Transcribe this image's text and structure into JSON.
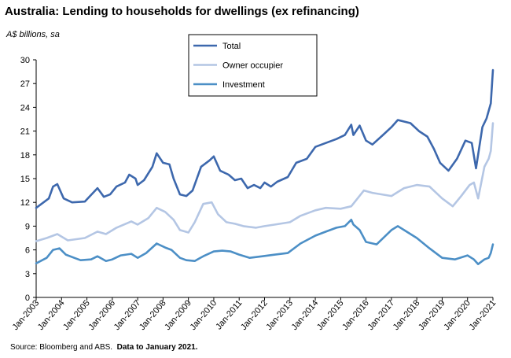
{
  "title": "Australia: Lending to households for dwellings (ex refinancing)",
  "units_label": "A$ billions, sa",
  "source_prefix": "Source: Bloomberg and ABS.",
  "source_bold": "Data to January 2021.",
  "colors": {
    "total": "#3d68ad",
    "owner": "#b4c6e4",
    "investment": "#4c8fc6",
    "axis": "#000000"
  },
  "chart_data": {
    "type": "line",
    "title": "Australia: Lending to households for dwellings (ex refinancing)",
    "ylabel": "A$ billions, sa",
    "xlabel": "",
    "ylim": [
      0,
      30
    ],
    "yticks": [
      0,
      3,
      6,
      9,
      12,
      15,
      18,
      21,
      24,
      27,
      30
    ],
    "xlim": [
      "Jan-2003",
      "Jan-2021"
    ],
    "xticks": [
      "Jan-2003",
      "Jan-2004",
      "Jan-2005",
      "Jan-2006",
      "Jan-2007",
      "Jan-2008",
      "Jan-2009",
      "Jan-2010",
      "Jan-2011",
      "Jan-2012",
      "Jan-2013",
      "Jan-2014",
      "Jan-2015",
      "Jan-2016",
      "Jan-2017",
      "Jan-2018",
      "Jan-2019",
      "Jan-2020",
      "Jan-2021"
    ],
    "grid": false,
    "legend_position": "top-center",
    "series": [
      {
        "name": "Total",
        "color": "#3d68ad",
        "points": [
          [
            "Jan-2003",
            11.3
          ],
          [
            "Jul-2003",
            12.5
          ],
          [
            "Sep-2003",
            14.0
          ],
          [
            "Nov-2003",
            14.3
          ],
          [
            "Feb-2004",
            12.5
          ],
          [
            "Jun-2004",
            12.0
          ],
          [
            "Dec-2004",
            12.1
          ],
          [
            "Jun-2005",
            13.8
          ],
          [
            "Sep-2005",
            12.7
          ],
          [
            "Dec-2005",
            13.0
          ],
          [
            "Mar-2006",
            14.0
          ],
          [
            "Jul-2006",
            14.5
          ],
          [
            "Sep-2006",
            15.5
          ],
          [
            "Dec-2006",
            15.0
          ],
          [
            "Jan-2007",
            14.2
          ],
          [
            "Apr-2007",
            14.8
          ],
          [
            "Aug-2007",
            16.5
          ],
          [
            "Oct-2007",
            18.2
          ],
          [
            "Jan-2008",
            17.0
          ],
          [
            "Apr-2008",
            16.8
          ],
          [
            "Jun-2008",
            15.0
          ],
          [
            "Sep-2008",
            13.0
          ],
          [
            "Dec-2008",
            12.8
          ],
          [
            "Mar-2009",
            13.5
          ],
          [
            "Jul-2009",
            16.5
          ],
          [
            "Nov-2009",
            17.3
          ],
          [
            "Jan-2010",
            17.8
          ],
          [
            "Apr-2010",
            16.0
          ],
          [
            "Aug-2010",
            15.5
          ],
          [
            "Nov-2010",
            14.8
          ],
          [
            "Feb-2011",
            15.0
          ],
          [
            "May-2011",
            13.8
          ],
          [
            "Aug-2011",
            14.2
          ],
          [
            "Nov-2011",
            13.8
          ],
          [
            "Jan-2012",
            14.5
          ],
          [
            "Apr-2012",
            14.0
          ],
          [
            "Jul-2012",
            14.6
          ],
          [
            "Dec-2012",
            15.2
          ],
          [
            "Apr-2013",
            17.0
          ],
          [
            "Sep-2013",
            17.5
          ],
          [
            "Jan-2014",
            19.0
          ],
          [
            "Jun-2014",
            19.5
          ],
          [
            "Nov-2014",
            20.0
          ],
          [
            "Mar-2015",
            20.5
          ],
          [
            "Jun-2015",
            21.8
          ],
          [
            "Jul-2015",
            20.5
          ],
          [
            "Oct-2015",
            21.7
          ],
          [
            "Jan-2016",
            19.8
          ],
          [
            "Apr-2016",
            19.3
          ],
          [
            "Sep-2016",
            20.5
          ],
          [
            "Jan-2017",
            21.5
          ],
          [
            "Apr-2017",
            22.4
          ],
          [
            "Jul-2017",
            22.2
          ],
          [
            "Oct-2017",
            22.0
          ],
          [
            "Feb-2018",
            21.0
          ],
          [
            "Jun-2018",
            20.3
          ],
          [
            "Sep-2018",
            18.8
          ],
          [
            "Dec-2018",
            17.0
          ],
          [
            "Apr-2019",
            16.0
          ],
          [
            "Aug-2019",
            17.5
          ],
          [
            "Dec-2019",
            19.8
          ],
          [
            "Mar-2020",
            19.5
          ],
          [
            "May-2020",
            16.3
          ],
          [
            "Aug-2020",
            21.5
          ],
          [
            "Oct-2020",
            22.6
          ],
          [
            "Dec-2020",
            24.5
          ],
          [
            "Jan-2021",
            28.7
          ]
        ]
      },
      {
        "name": "Owner occupier",
        "color": "#b4c6e4",
        "points": [
          [
            "Jan-2003",
            7.1
          ],
          [
            "Jun-2003",
            7.5
          ],
          [
            "Nov-2003",
            8.0
          ],
          [
            "Apr-2004",
            7.2
          ],
          [
            "Dec-2004",
            7.5
          ],
          [
            "Jun-2005",
            8.3
          ],
          [
            "Oct-2005",
            8.0
          ],
          [
            "Mar-2006",
            8.8
          ],
          [
            "Oct-2006",
            9.6
          ],
          [
            "Jan-2007",
            9.2
          ],
          [
            "Jun-2007",
            10.0
          ],
          [
            "Oct-2007",
            11.3
          ],
          [
            "Feb-2008",
            10.8
          ],
          [
            "Jun-2008",
            9.8
          ],
          [
            "Sep-2008",
            8.5
          ],
          [
            "Jan-2009",
            8.2
          ],
          [
            "Apr-2009",
            9.5
          ],
          [
            "Aug-2009",
            11.8
          ],
          [
            "Dec-2009",
            12.0
          ],
          [
            "Mar-2010",
            10.5
          ],
          [
            "Jul-2010",
            9.5
          ],
          [
            "Nov-2010",
            9.3
          ],
          [
            "Mar-2011",
            9.0
          ],
          [
            "Sep-2011",
            8.8
          ],
          [
            "Jan-2012",
            9.0
          ],
          [
            "Jun-2012",
            9.2
          ],
          [
            "Jan-2013",
            9.5
          ],
          [
            "Jun-2013",
            10.3
          ],
          [
            "Jan-2014",
            11.0
          ],
          [
            "Jun-2014",
            11.3
          ],
          [
            "Jan-2015",
            11.2
          ],
          [
            "Jun-2015",
            11.5
          ],
          [
            "Dec-2015",
            13.5
          ],
          [
            "Apr-2016",
            13.2
          ],
          [
            "Jan-2017",
            12.8
          ],
          [
            "Jul-2017",
            13.8
          ],
          [
            "Jan-2018",
            14.2
          ],
          [
            "Jul-2018",
            14.0
          ],
          [
            "Jan-2019",
            12.5
          ],
          [
            "Jun-2019",
            11.5
          ],
          [
            "Oct-2019",
            12.8
          ],
          [
            "Feb-2020",
            14.2
          ],
          [
            "Apr-2020",
            14.5
          ],
          [
            "Jun-2020",
            12.5
          ],
          [
            "Sep-2020",
            16.5
          ],
          [
            "Nov-2020",
            17.5
          ],
          [
            "Dec-2020",
            18.5
          ],
          [
            "Jan-2021",
            22.0
          ]
        ]
      },
      {
        "name": "Investment",
        "color": "#4c8fc6",
        "points": [
          [
            "Jan-2003",
            4.3
          ],
          [
            "Jun-2003",
            5.0
          ],
          [
            "Sep-2003",
            6.0
          ],
          [
            "Dec-2003",
            6.2
          ],
          [
            "Mar-2004",
            5.4
          ],
          [
            "Jul-2004",
            5.0
          ],
          [
            "Oct-2004",
            4.7
          ],
          [
            "Mar-2005",
            4.8
          ],
          [
            "Jun-2005",
            5.2
          ],
          [
            "Oct-2005",
            4.6
          ],
          [
            "Jan-2006",
            4.8
          ],
          [
            "May-2006",
            5.3
          ],
          [
            "Oct-2006",
            5.5
          ],
          [
            "Jan-2007",
            5.0
          ],
          [
            "May-2007",
            5.6
          ],
          [
            "Oct-2007",
            6.8
          ],
          [
            "Feb-2008",
            6.3
          ],
          [
            "May-2008",
            6.0
          ],
          [
            "Sep-2008",
            5.0
          ],
          [
            "Dec-2008",
            4.7
          ],
          [
            "Apr-2009",
            4.6
          ],
          [
            "Aug-2009",
            5.2
          ],
          [
            "Jan-2010",
            5.8
          ],
          [
            "May-2010",
            5.9
          ],
          [
            "Sep-2010",
            5.8
          ],
          [
            "Jan-2011",
            5.4
          ],
          [
            "Jun-2011",
            5.0
          ],
          [
            "Dec-2011",
            5.2
          ],
          [
            "Jun-2012",
            5.4
          ],
          [
            "Dec-2012",
            5.6
          ],
          [
            "Jun-2013",
            6.8
          ],
          [
            "Jan-2014",
            7.8
          ],
          [
            "Jun-2014",
            8.3
          ],
          [
            "Nov-2014",
            8.8
          ],
          [
            "Mar-2015",
            9.0
          ],
          [
            "Jun-2015",
            9.8
          ],
          [
            "Jul-2015",
            9.2
          ],
          [
            "Oct-2015",
            8.5
          ],
          [
            "Jan-2016",
            7.0
          ],
          [
            "Jun-2016",
            6.7
          ],
          [
            "Jan-2017",
            8.5
          ],
          [
            "Apr-2017",
            9.0
          ],
          [
            "Jul-2017",
            8.5
          ],
          [
            "Jan-2018",
            7.5
          ],
          [
            "Jul-2018",
            6.2
          ],
          [
            "Jan-2019",
            5.0
          ],
          [
            "Jul-2019",
            4.8
          ],
          [
            "Jan-2020",
            5.3
          ],
          [
            "Apr-2020",
            4.8
          ],
          [
            "Jun-2020",
            4.2
          ],
          [
            "Sep-2020",
            4.8
          ],
          [
            "Nov-2020",
            5.0
          ],
          [
            "Dec-2020",
            5.6
          ],
          [
            "Jan-2021",
            6.7
          ]
        ]
      }
    ]
  }
}
